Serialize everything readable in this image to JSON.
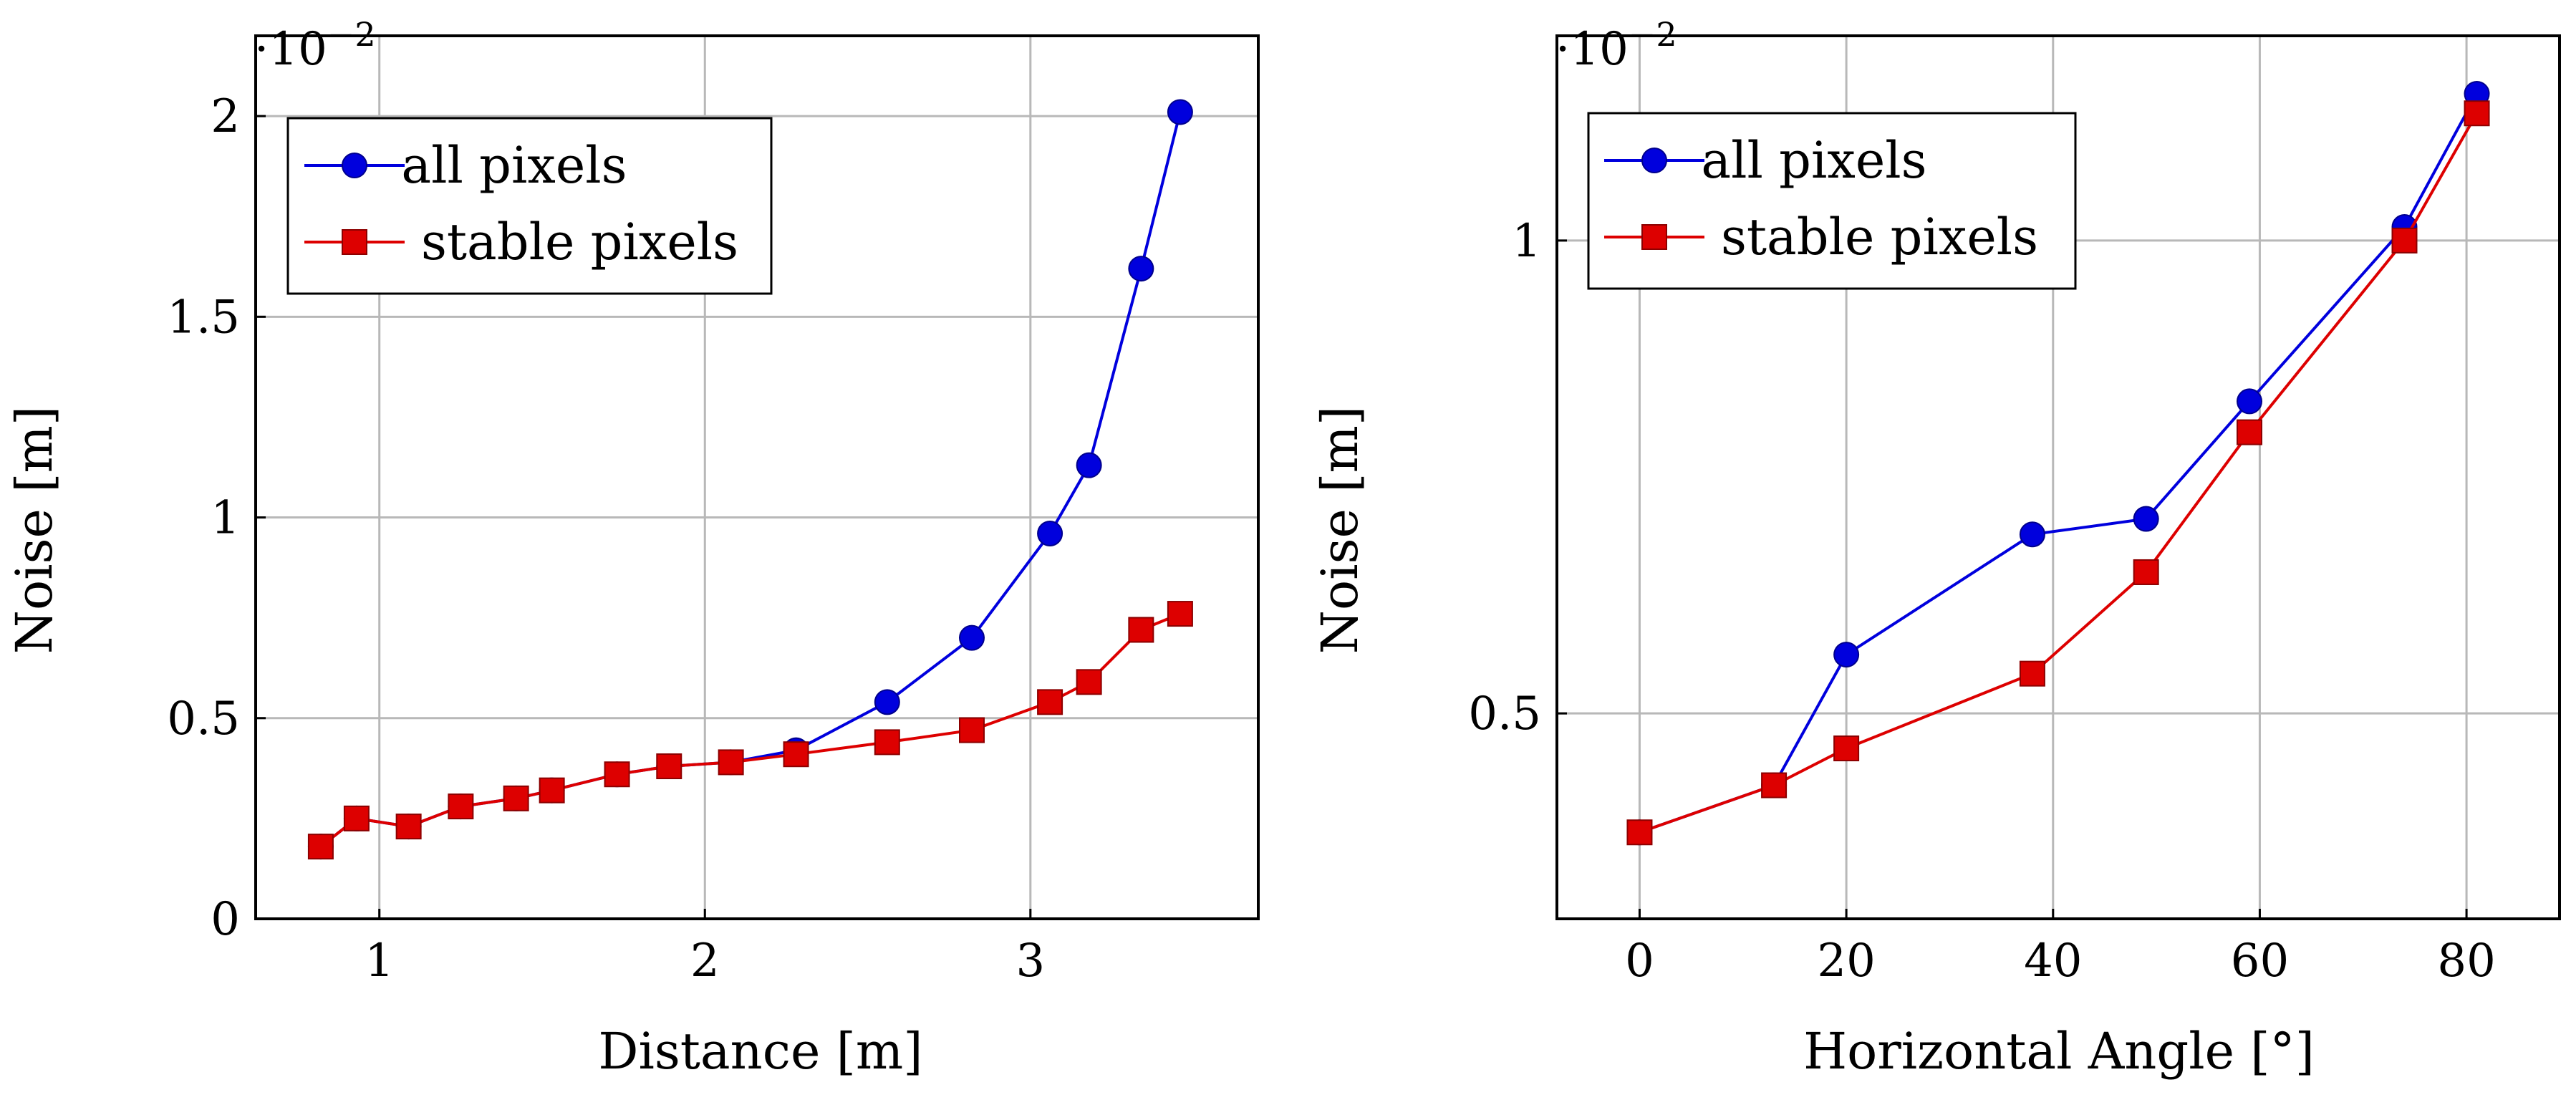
{
  "chart_data": [
    {
      "type": "line",
      "xlabel": "Distance [m]",
      "ylabel": "Noise [m]",
      "y_multiplier": {
        "base": "·10",
        "exponent": "−2"
      },
      "xlim": [
        0.62,
        3.7
      ],
      "ylim": [
        0,
        2.2
      ],
      "xticks": [
        1,
        2,
        3
      ],
      "yticks": [
        0,
        0.5,
        1,
        1.5,
        2
      ],
      "yscale": "linear",
      "grid": true,
      "legend_position": "top-left",
      "series": [
        {
          "name": "all pixels",
          "color": "#0000dd",
          "marker": "circle",
          "x": [
            0.82,
            0.93,
            1.09,
            1.25,
            1.42,
            1.53,
            1.73,
            1.89,
            2.08,
            2.28,
            2.56,
            2.82,
            3.06,
            3.18,
            3.34,
            3.46
          ],
          "y": [
            0.18,
            0.25,
            0.23,
            0.28,
            0.3,
            0.32,
            0.36,
            0.38,
            0.39,
            0.42,
            0.54,
            0.7,
            0.96,
            1.13,
            1.62,
            2.01
          ]
        },
        {
          "name": "stable pixels",
          "color": "#dd0000",
          "marker": "square",
          "x": [
            0.82,
            0.93,
            1.09,
            1.25,
            1.42,
            1.53,
            1.73,
            1.89,
            2.08,
            2.28,
            2.56,
            2.82,
            3.06,
            3.18,
            3.34,
            3.46
          ],
          "y": [
            0.18,
            0.25,
            0.23,
            0.28,
            0.3,
            0.32,
            0.36,
            0.38,
            0.39,
            0.41,
            0.44,
            0.47,
            0.54,
            0.59,
            0.72,
            0.76
          ]
        }
      ]
    },
    {
      "type": "line",
      "xlabel": "Horizontal Angle [°]",
      "ylabel": "Noise [m]",
      "y_multiplier": {
        "base": "·10",
        "exponent": "−2"
      },
      "xlim": [
        -8,
        89
      ],
      "ylim": [
        0.37,
        1.35
      ],
      "xticks": [
        0,
        20,
        40,
        60,
        80
      ],
      "yticks": [
        0.5,
        1
      ],
      "yscale": "log",
      "grid": true,
      "legend_position": "top-left",
      "series": [
        {
          "name": "all pixels",
          "color": "#0000dd",
          "marker": "circle",
          "x": [
            0,
            13,
            20,
            38,
            49,
            59,
            74,
            81
          ],
          "y": [
            0.42,
            0.45,
            0.545,
            0.65,
            0.665,
            0.79,
            1.02,
            1.24
          ]
        },
        {
          "name": "stable pixels",
          "color": "#dd0000",
          "marker": "square",
          "x": [
            0,
            13,
            20,
            38,
            49,
            59,
            74,
            81
          ],
          "y": [
            0.42,
            0.45,
            0.475,
            0.53,
            0.615,
            0.755,
            1.0,
            1.205
          ]
        }
      ]
    }
  ]
}
